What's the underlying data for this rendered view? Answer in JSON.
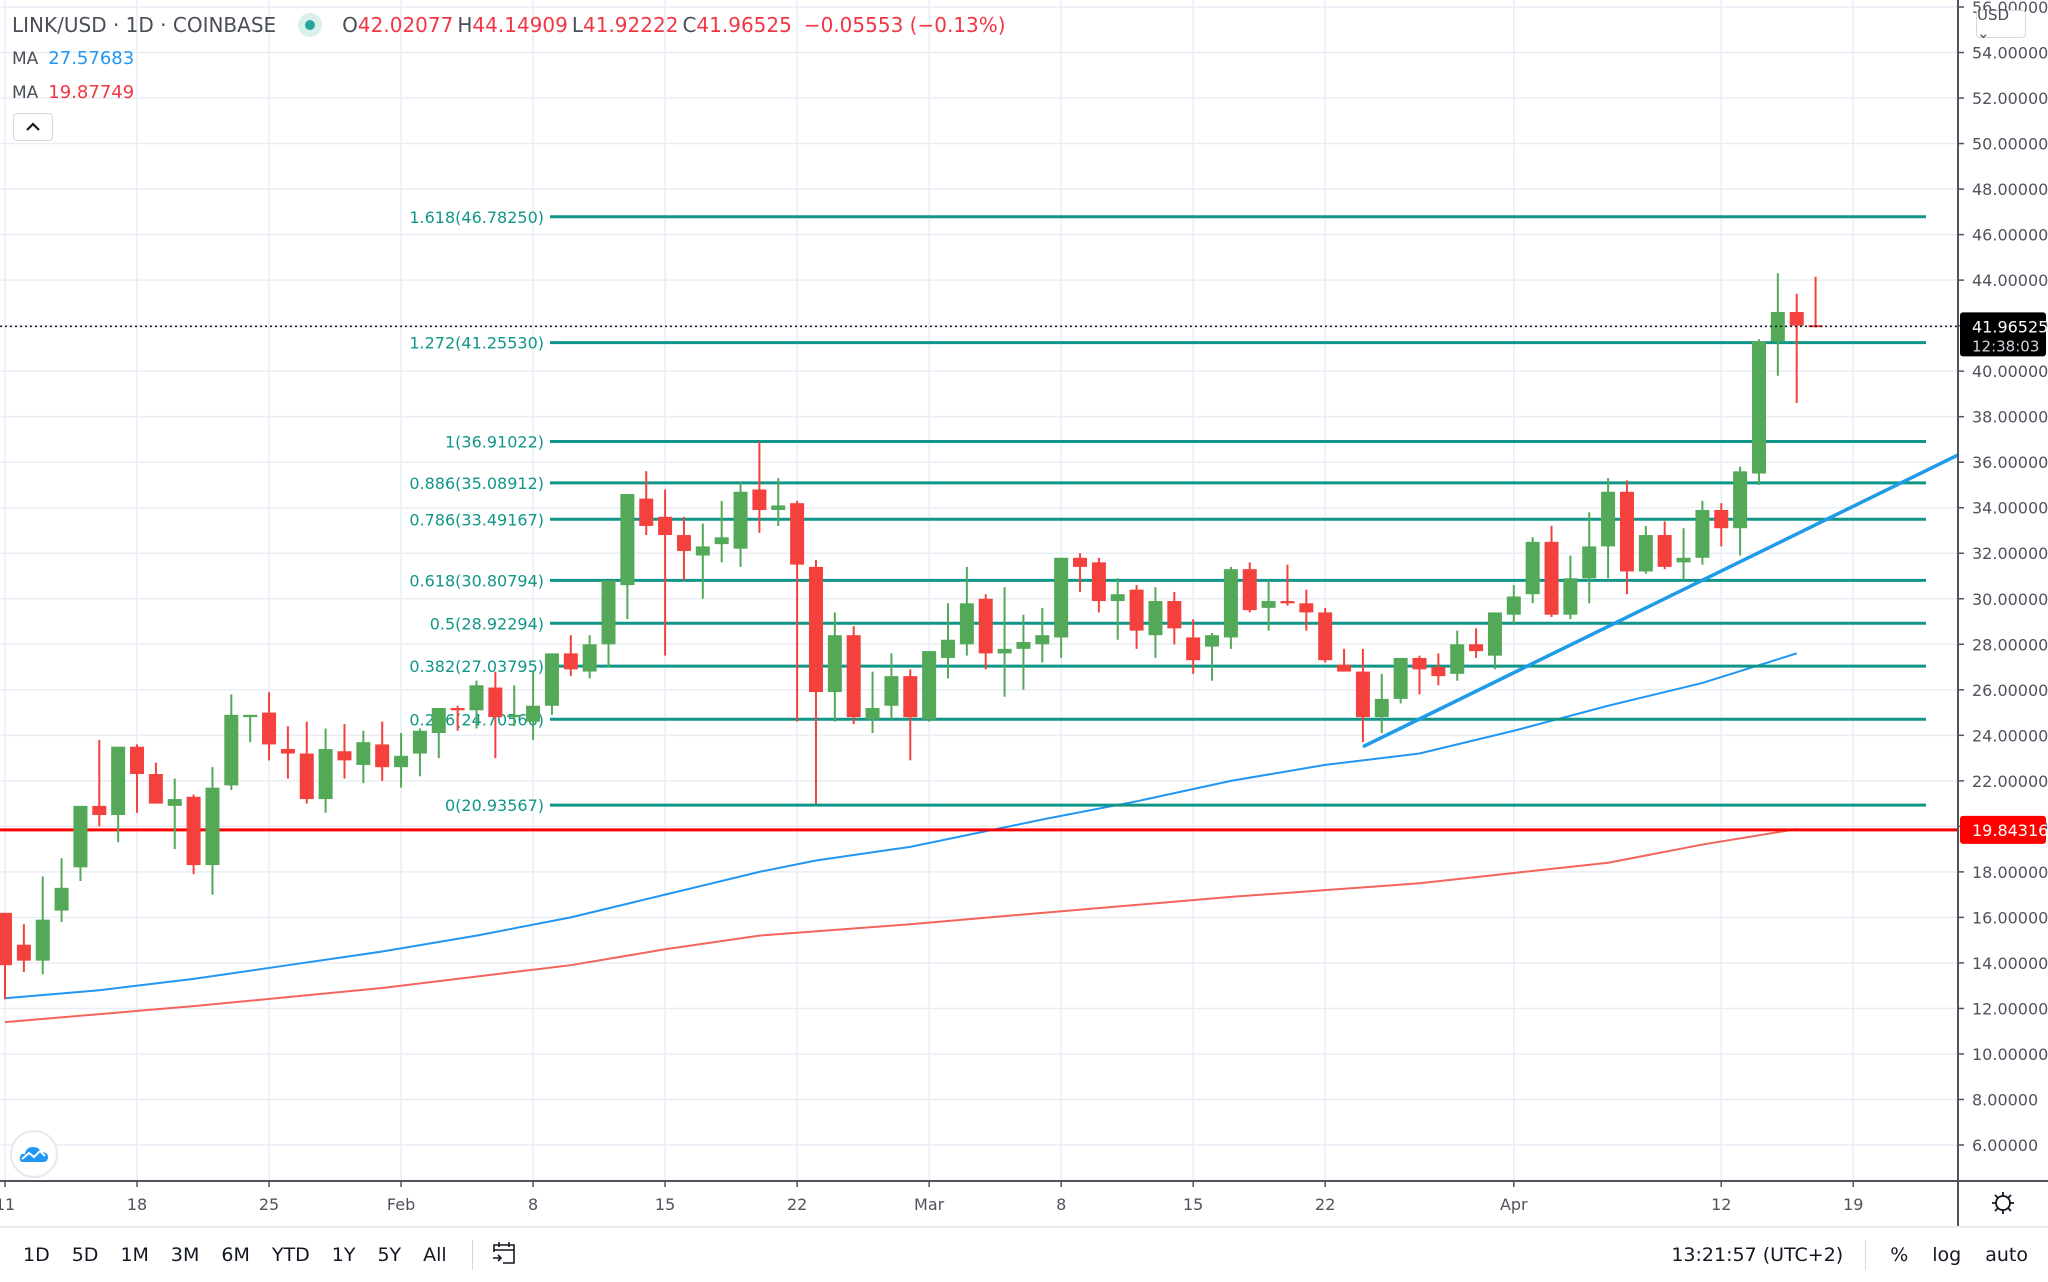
{
  "header": {
    "symbol": "LINK/USD · 1D · COINBASE",
    "open_label": "O",
    "open": "42.02077",
    "high_label": "H",
    "high": "44.14909",
    "low_label": "L",
    "low": "41.92222",
    "close_label": "C",
    "close": "41.96525",
    "change": "−0.05553 (−0.13%)"
  },
  "indicators": [
    {
      "label": "MA",
      "value": "27.57683",
      "color": "#2196f3"
    },
    {
      "label": "MA",
      "value": "19.87749",
      "color": "#f23645"
    }
  ],
  "collapse_icon": "chevron-up",
  "currency": "USD ⌄",
  "price_axis": {
    "ticks": [
      "56.00000",
      "54.00000",
      "52.00000",
      "50.00000",
      "48.00000",
      "46.00000",
      "44.00000",
      "42.00000",
      "40.00000",
      "38.00000",
      "36.00000",
      "34.00000",
      "32.00000",
      "30.00000",
      "28.00000",
      "26.00000",
      "24.00000",
      "22.00000",
      "20.00000",
      "18.00000",
      "16.00000",
      "14.00000",
      "12.00000",
      "10.00000",
      "8.00000",
      "6.00000"
    ],
    "last_price_label": "41.96525",
    "countdown": "12:38:03",
    "hline_label": "19.84316"
  },
  "time_axis": {
    "labels": [
      {
        "text": "11",
        "day": 0
      },
      {
        "text": "18",
        "day": 7
      },
      {
        "text": "25",
        "day": 14
      },
      {
        "text": "Feb",
        "day": 21
      },
      {
        "text": "8",
        "day": 28
      },
      {
        "text": "15",
        "day": 35
      },
      {
        "text": "22",
        "day": 42
      },
      {
        "text": "Mar",
        "day": 49
      },
      {
        "text": "8",
        "day": 56
      },
      {
        "text": "15",
        "day": 63
      },
      {
        "text": "22",
        "day": 70
      },
      {
        "text": "Apr",
        "day": 80
      },
      {
        "text": "12",
        "day": 91
      },
      {
        "text": "19",
        "day": 98
      }
    ]
  },
  "bottom_bar": {
    "ranges": [
      "1D",
      "5D",
      "1M",
      "3M",
      "6M",
      "YTD",
      "1Y",
      "5Y",
      "All"
    ],
    "time": "13:21:57 (UTC+2)",
    "percent": "%",
    "log": "log",
    "auto": "auto"
  },
  "colors": {
    "up": "#53a957",
    "down": "#f4413d",
    "fib": "#109688",
    "ma_fast": "#2196f3",
    "ma_slow": "#f4645c",
    "hline": "#ff0000",
    "trend": "#1e9be9",
    "grid": "#e8eef5"
  },
  "chart_data": {
    "type": "candlestick",
    "title": "LINK/USD · 1D · COINBASE",
    "xlabel": "",
    "ylabel": "USD",
    "ylim": [
      5,
      56
    ],
    "grid": true,
    "x_start": "Jan 11",
    "x_axis_ticks": [
      "11",
      "18",
      "25",
      "Feb",
      "8",
      "15",
      "22",
      "Mar",
      "8",
      "15",
      "22",
      "Apr",
      "12",
      "19"
    ],
    "candles": [
      {
        "d": 0,
        "o": 16.2,
        "h": 16.2,
        "l": 12.4,
        "c": 13.9
      },
      {
        "d": 1,
        "o": 14.8,
        "h": 15.7,
        "l": 13.6,
        "c": 14.1
      },
      {
        "d": 2,
        "o": 14.1,
        "h": 17.8,
        "l": 13.5,
        "c": 15.9
      },
      {
        "d": 3,
        "o": 16.3,
        "h": 18.6,
        "l": 15.8,
        "c": 17.3
      },
      {
        "d": 4,
        "o": 18.2,
        "h": 20.8,
        "l": 17.6,
        "c": 20.9
      },
      {
        "d": 5,
        "o": 20.9,
        "h": 23.8,
        "l": 20.0,
        "c": 20.5
      },
      {
        "d": 6,
        "o": 20.5,
        "h": 23.0,
        "l": 19.3,
        "c": 23.5
      },
      {
        "d": 7,
        "o": 23.5,
        "h": 23.6,
        "l": 20.6,
        "c": 22.3
      },
      {
        "d": 8,
        "o": 22.3,
        "h": 22.8,
        "l": 21.2,
        "c": 21.0
      },
      {
        "d": 9,
        "o": 20.9,
        "h": 22.1,
        "l": 19.0,
        "c": 21.2
      },
      {
        "d": 10,
        "o": 21.3,
        "h": 21.4,
        "l": 17.9,
        "c": 18.3
      },
      {
        "d": 11,
        "o": 18.3,
        "h": 22.6,
        "l": 17.0,
        "c": 21.7
      },
      {
        "d": 12,
        "o": 21.8,
        "h": 25.8,
        "l": 21.6,
        "c": 24.9
      },
      {
        "d": 13,
        "o": 24.8,
        "h": 24.9,
        "l": 23.7,
        "c": 24.9
      },
      {
        "d": 14,
        "o": 25.0,
        "h": 25.9,
        "l": 22.9,
        "c": 23.6
      },
      {
        "d": 15,
        "o": 23.4,
        "h": 24.4,
        "l": 22.1,
        "c": 23.2
      },
      {
        "d": 16,
        "o": 23.2,
        "h": 24.6,
        "l": 21.0,
        "c": 21.2
      },
      {
        "d": 17,
        "o": 21.2,
        "h": 24.3,
        "l": 20.6,
        "c": 23.4
      },
      {
        "d": 18,
        "o": 23.3,
        "h": 24.5,
        "l": 22.1,
        "c": 22.9
      },
      {
        "d": 19,
        "o": 22.7,
        "h": 24.2,
        "l": 21.9,
        "c": 23.7
      },
      {
        "d": 20,
        "o": 23.6,
        "h": 24.6,
        "l": 22.0,
        "c": 22.6
      },
      {
        "d": 21,
        "o": 22.6,
        "h": 24.1,
        "l": 21.7,
        "c": 23.1
      },
      {
        "d": 22,
        "o": 23.2,
        "h": 24.3,
        "l": 22.2,
        "c": 24.2
      },
      {
        "d": 23,
        "o": 24.1,
        "h": 25.1,
        "l": 23.0,
        "c": 25.2
      },
      {
        "d": 24,
        "o": 25.2,
        "h": 25.3,
        "l": 24.2,
        "c": 25.1
      },
      {
        "d": 25,
        "o": 25.1,
        "h": 26.4,
        "l": 24.3,
        "c": 26.2
      },
      {
        "d": 26,
        "o": 26.1,
        "h": 26.8,
        "l": 23.0,
        "c": 24.8
      },
      {
        "d": 27,
        "o": 24.8,
        "h": 26.2,
        "l": 24.4,
        "c": 24.9
      },
      {
        "d": 28,
        "o": 24.6,
        "h": 26.8,
        "l": 23.8,
        "c": 25.3
      },
      {
        "d": 29,
        "o": 25.3,
        "h": 27.2,
        "l": 24.9,
        "c": 27.6
      },
      {
        "d": 30,
        "o": 27.6,
        "h": 28.4,
        "l": 26.6,
        "c": 26.9
      },
      {
        "d": 31,
        "o": 26.8,
        "h": 28.4,
        "l": 26.5,
        "c": 28.0
      },
      {
        "d": 32,
        "o": 28.0,
        "h": 29.3,
        "l": 27.0,
        "c": 30.8
      },
      {
        "d": 33,
        "o": 30.6,
        "h": 31.7,
        "l": 29.1,
        "c": 34.6
      },
      {
        "d": 34,
        "o": 34.4,
        "h": 35.6,
        "l": 32.8,
        "c": 33.2
      },
      {
        "d": 35,
        "o": 33.6,
        "h": 34.8,
        "l": 27.5,
        "c": 32.8
      },
      {
        "d": 36,
        "o": 32.8,
        "h": 33.6,
        "l": 30.8,
        "c": 32.1
      },
      {
        "d": 37,
        "o": 31.9,
        "h": 33.3,
        "l": 30.0,
        "c": 32.3
      },
      {
        "d": 38,
        "o": 32.4,
        "h": 34.3,
        "l": 31.6,
        "c": 32.7
      },
      {
        "d": 39,
        "o": 32.2,
        "h": 35.1,
        "l": 31.4,
        "c": 34.7
      },
      {
        "d": 40,
        "o": 34.8,
        "h": 36.9,
        "l": 32.9,
        "c": 33.9
      },
      {
        "d": 41,
        "o": 33.9,
        "h": 35.3,
        "l": 33.2,
        "c": 34.1
      },
      {
        "d": 42,
        "o": 34.2,
        "h": 34.3,
        "l": 24.6,
        "c": 31.5
      },
      {
        "d": 43,
        "o": 31.4,
        "h": 31.7,
        "l": 21.0,
        "c": 25.9
      },
      {
        "d": 44,
        "o": 25.9,
        "h": 29.4,
        "l": 24.6,
        "c": 28.4
      },
      {
        "d": 45,
        "o": 28.4,
        "h": 28.8,
        "l": 24.5,
        "c": 24.8
      },
      {
        "d": 46,
        "o": 24.7,
        "h": 26.8,
        "l": 24.1,
        "c": 25.2
      },
      {
        "d": 47,
        "o": 25.3,
        "h": 27.6,
        "l": 24.7,
        "c": 26.6
      },
      {
        "d": 48,
        "o": 26.6,
        "h": 26.9,
        "l": 22.9,
        "c": 24.8
      },
      {
        "d": 49,
        "o": 24.7,
        "h": 27.7,
        "l": 24.6,
        "c": 27.7
      },
      {
        "d": 50,
        "o": 27.4,
        "h": 29.8,
        "l": 26.5,
        "c": 28.2
      },
      {
        "d": 51,
        "o": 28.0,
        "h": 31.4,
        "l": 27.5,
        "c": 29.8
      },
      {
        "d": 52,
        "o": 30.0,
        "h": 30.2,
        "l": 26.9,
        "c": 27.6
      },
      {
        "d": 53,
        "o": 27.6,
        "h": 30.5,
        "l": 25.7,
        "c": 27.8
      },
      {
        "d": 54,
        "o": 27.8,
        "h": 29.3,
        "l": 26.0,
        "c": 28.1
      },
      {
        "d": 55,
        "o": 28.0,
        "h": 29.6,
        "l": 27.2,
        "c": 28.4
      },
      {
        "d": 56,
        "o": 28.3,
        "h": 31.8,
        "l": 27.4,
        "c": 31.8
      },
      {
        "d": 57,
        "o": 31.8,
        "h": 32.0,
        "l": 30.3,
        "c": 31.4
      },
      {
        "d": 58,
        "o": 31.6,
        "h": 31.8,
        "l": 29.4,
        "c": 29.9
      },
      {
        "d": 59,
        "o": 29.9,
        "h": 30.9,
        "l": 28.2,
        "c": 30.2
      },
      {
        "d": 60,
        "o": 30.4,
        "h": 30.6,
        "l": 27.8,
        "c": 28.6
      },
      {
        "d": 61,
        "o": 28.4,
        "h": 30.5,
        "l": 27.4,
        "c": 29.9
      },
      {
        "d": 62,
        "o": 29.9,
        "h": 30.3,
        "l": 28.0,
        "c": 28.7
      },
      {
        "d": 63,
        "o": 28.3,
        "h": 29.1,
        "l": 26.7,
        "c": 27.3
      },
      {
        "d": 64,
        "o": 27.9,
        "h": 28.5,
        "l": 26.4,
        "c": 28.4
      },
      {
        "d": 65,
        "o": 28.3,
        "h": 31.4,
        "l": 27.8,
        "c": 31.3
      },
      {
        "d": 66,
        "o": 31.3,
        "h": 31.6,
        "l": 29.4,
        "c": 29.5
      },
      {
        "d": 67,
        "o": 29.6,
        "h": 30.8,
        "l": 28.6,
        "c": 29.9
      },
      {
        "d": 68,
        "o": 29.9,
        "h": 31.5,
        "l": 29.7,
        "c": 29.8
      },
      {
        "d": 69,
        "o": 29.8,
        "h": 30.4,
        "l": 28.6,
        "c": 29.4
      },
      {
        "d": 70,
        "o": 29.4,
        "h": 29.6,
        "l": 27.2,
        "c": 27.3
      },
      {
        "d": 71,
        "o": 27.1,
        "h": 27.8,
        "l": 26.9,
        "c": 26.8
      },
      {
        "d": 72,
        "o": 26.8,
        "h": 27.8,
        "l": 23.7,
        "c": 24.8
      },
      {
        "d": 73,
        "o": 24.8,
        "h": 26.7,
        "l": 24.1,
        "c": 25.6
      },
      {
        "d": 74,
        "o": 25.6,
        "h": 27.4,
        "l": 25.4,
        "c": 27.4
      },
      {
        "d": 75,
        "o": 27.4,
        "h": 27.5,
        "l": 25.8,
        "c": 26.9
      },
      {
        "d": 76,
        "o": 27.0,
        "h": 27.6,
        "l": 26.2,
        "c": 26.6
      },
      {
        "d": 77,
        "o": 26.7,
        "h": 28.6,
        "l": 26.4,
        "c": 28.0
      },
      {
        "d": 78,
        "o": 28.0,
        "h": 28.7,
        "l": 27.4,
        "c": 27.7
      },
      {
        "d": 79,
        "o": 27.5,
        "h": 29.3,
        "l": 26.9,
        "c": 29.4
      },
      {
        "d": 80,
        "o": 29.3,
        "h": 30.6,
        "l": 28.9,
        "c": 30.1
      },
      {
        "d": 81,
        "o": 30.2,
        "h": 32.7,
        "l": 29.8,
        "c": 32.5
      },
      {
        "d": 82,
        "o": 32.5,
        "h": 33.2,
        "l": 29.2,
        "c": 29.3
      },
      {
        "d": 83,
        "o": 29.3,
        "h": 31.9,
        "l": 29.1,
        "c": 30.9
      },
      {
        "d": 84,
        "o": 30.9,
        "h": 33.8,
        "l": 29.8,
        "c": 32.3
      },
      {
        "d": 85,
        "o": 32.3,
        "h": 35.3,
        "l": 30.9,
        "c": 34.7
      },
      {
        "d": 86,
        "o": 34.7,
        "h": 35.2,
        "l": 30.2,
        "c": 31.2
      },
      {
        "d": 87,
        "o": 31.2,
        "h": 33.2,
        "l": 31.1,
        "c": 32.8
      },
      {
        "d": 88,
        "o": 32.8,
        "h": 33.4,
        "l": 31.3,
        "c": 31.4
      },
      {
        "d": 89,
        "o": 31.6,
        "h": 33.1,
        "l": 30.8,
        "c": 31.8
      },
      {
        "d": 90,
        "o": 31.8,
        "h": 34.3,
        "l": 31.5,
        "c": 33.9
      },
      {
        "d": 91,
        "o": 33.9,
        "h": 34.2,
        "l": 32.3,
        "c": 33.1
      },
      {
        "d": 92,
        "o": 33.1,
        "h": 35.8,
        "l": 31.9,
        "c": 35.6
      },
      {
        "d": 93,
        "o": 35.5,
        "h": 41.4,
        "l": 35.0,
        "c": 41.3
      },
      {
        "d": 94,
        "o": 41.3,
        "h": 44.3,
        "l": 39.8,
        "c": 42.6
      },
      {
        "d": 95,
        "o": 42.6,
        "h": 43.4,
        "l": 38.6,
        "c": 42.0
      },
      {
        "d": 96,
        "o": 42.02077,
        "h": 44.14909,
        "l": 41.92222,
        "c": 41.96525
      }
    ],
    "fib_levels": [
      {
        "label": "1.618(46.78250)",
        "price": 46.7825
      },
      {
        "label": "1.272(41.25530)",
        "price": 41.2553
      },
      {
        "label": "1(36.91022)",
        "price": 36.91022
      },
      {
        "label": "0.886(35.08912)",
        "price": 35.08912
      },
      {
        "label": "0.786(33.49167)",
        "price": 33.49167
      },
      {
        "label": "0.618(30.80794)",
        "price": 30.80794
      },
      {
        "label": "0.5(28.92294)",
        "price": 28.92294
      },
      {
        "label": "0.382(27.03795)",
        "price": 27.03795
      },
      {
        "label": "0.236(24.70566)",
        "price": 24.70566
      },
      {
        "label": "0(20.93567)",
        "price": 20.93567
      }
    ],
    "horizontal_line": 19.84316,
    "trendline": {
      "from": {
        "d": 72,
        "price": 23.5
      },
      "to": {
        "d": 104,
        "price": 36.5
      }
    },
    "ma_fast": [
      [
        0,
        12.45
      ],
      [
        5,
        12.8
      ],
      [
        10,
        13.3
      ],
      [
        15,
        13.9
      ],
      [
        20,
        14.5
      ],
      [
        25,
        15.2
      ],
      [
        30,
        16.0
      ],
      [
        35,
        17.0
      ],
      [
        40,
        18.0
      ],
      [
        43,
        18.5
      ],
      [
        48,
        19.1
      ],
      [
        55,
        20.3
      ],
      [
        60,
        21.1
      ],
      [
        65,
        22.0
      ],
      [
        70,
        22.7
      ],
      [
        75,
        23.2
      ],
      [
        80,
        24.2
      ],
      [
        85,
        25.3
      ],
      [
        90,
        26.3
      ],
      [
        95,
        27.6
      ]
    ],
    "ma_slow": [
      [
        0,
        11.4
      ],
      [
        10,
        12.1
      ],
      [
        20,
        12.9
      ],
      [
        30,
        13.9
      ],
      [
        35,
        14.6
      ],
      [
        40,
        15.2
      ],
      [
        48,
        15.7
      ],
      [
        55,
        16.2
      ],
      [
        65,
        16.9
      ],
      [
        75,
        17.5
      ],
      [
        85,
        18.4
      ],
      [
        90,
        19.2
      ],
      [
        95,
        19.88
      ]
    ],
    "series": [
      {
        "name": "MA (fast)",
        "last": 27.57683
      },
      {
        "name": "MA (slow)",
        "last": 19.87749
      }
    ]
  }
}
